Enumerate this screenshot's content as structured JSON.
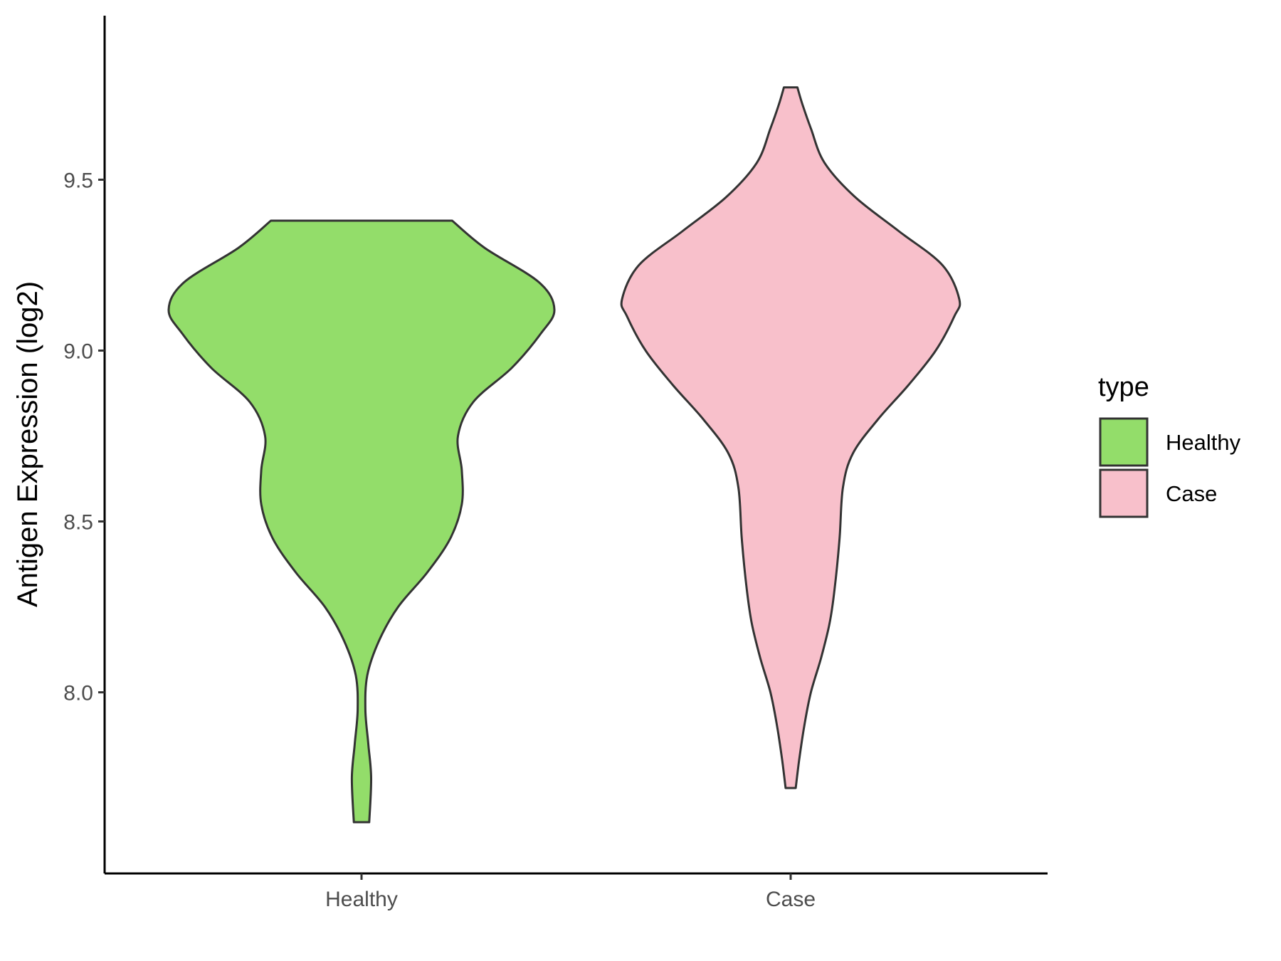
{
  "chart_data": {
    "type": "violin",
    "ylabel": "Antigen Expression (log2)",
    "xlabel": "",
    "categories": [
      "Healthy",
      "Case"
    ],
    "ylim": [
      7.47,
      9.98
    ],
    "yticks": [
      8.0,
      8.5,
      9.0,
      9.5
    ],
    "ytick_labels": [
      "8.0",
      "8.5",
      "9.0",
      "9.5"
    ],
    "grid": false,
    "legend": {
      "title": "type",
      "position": "right",
      "entries": [
        {
          "label": "Healthy",
          "color": "#93DD6A"
        },
        {
          "label": "Case",
          "color": "#F8C0CB"
        }
      ]
    },
    "series": [
      {
        "category": "Healthy",
        "color": "#93DD6A",
        "range": [
          7.62,
          9.38
        ],
        "density_profile": [
          [
            7.62,
            0.04
          ],
          [
            7.75,
            0.05
          ],
          [
            7.85,
            0.035
          ],
          [
            7.95,
            0.02
          ],
          [
            8.05,
            0.03
          ],
          [
            8.15,
            0.09
          ],
          [
            8.25,
            0.19
          ],
          [
            8.35,
            0.34
          ],
          [
            8.45,
            0.46
          ],
          [
            8.55,
            0.52
          ],
          [
            8.65,
            0.52
          ],
          [
            8.75,
            0.5
          ],
          [
            8.85,
            0.58
          ],
          [
            8.95,
            0.78
          ],
          [
            9.05,
            0.93
          ],
          [
            9.12,
            1.0
          ],
          [
            9.2,
            0.92
          ],
          [
            9.3,
            0.64
          ],
          [
            9.38,
            0.47
          ]
        ]
      },
      {
        "category": "Case",
        "color": "#F8C0CB",
        "range": [
          7.72,
          9.77
        ],
        "density_profile": [
          [
            7.72,
            0.03
          ],
          [
            7.8,
            0.05
          ],
          [
            7.9,
            0.08
          ],
          [
            8.0,
            0.12
          ],
          [
            8.1,
            0.18
          ],
          [
            8.2,
            0.23
          ],
          [
            8.3,
            0.26
          ],
          [
            8.45,
            0.29
          ],
          [
            8.6,
            0.31
          ],
          [
            8.7,
            0.37
          ],
          [
            8.8,
            0.52
          ],
          [
            8.9,
            0.7
          ],
          [
            9.0,
            0.86
          ],
          [
            9.1,
            0.97
          ],
          [
            9.15,
            1.0
          ],
          [
            9.25,
            0.9
          ],
          [
            9.35,
            0.64
          ],
          [
            9.45,
            0.38
          ],
          [
            9.55,
            0.2
          ],
          [
            9.65,
            0.12
          ],
          [
            9.72,
            0.07
          ],
          [
            9.77,
            0.04
          ]
        ]
      }
    ]
  }
}
